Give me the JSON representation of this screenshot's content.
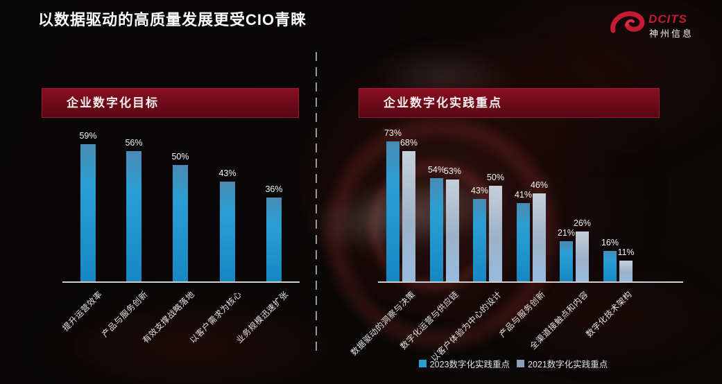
{
  "title": "以数据驱动的高质量发展更受CIO青睐",
  "logo": {
    "brand": "DCITS",
    "company": "神州信息"
  },
  "colors": {
    "accent_red": "#a01830",
    "bar_blue_top": "#4a8ab2",
    "bar_blue": "#2b9fd4",
    "bar_blue_deep": "#1787c2",
    "bar_gray_top": "#c6cfda",
    "bar_gray_mid": "#9db1c7",
    "bar_gray_bottom": "#97bbde",
    "legend_blue": "#2b9fd4",
    "legend_gray": "#8ba0b8",
    "axis": "#cfcfcf"
  },
  "chart_data": [
    {
      "type": "bar",
      "title": "企业数字化目标",
      "categories": [
        "提升运营效率",
        "产品与服务创新",
        "有效支撑战略落地",
        "以客户需求为核心",
        "业务规模迅速扩张"
      ],
      "values": [
        59,
        56,
        50,
        43,
        36
      ],
      "unit": "%",
      "ylim": [
        0,
        65
      ],
      "grid": false,
      "legend": null
    },
    {
      "type": "bar",
      "title": "企业数字化实践重点",
      "categories": [
        "数据驱动的洞察与决策",
        "数字化运营与供应链",
        "以客户体验为中心的设计",
        "产品与服务创新",
        "全渠道接触点和内容",
        "数字化技术架构"
      ],
      "series": [
        {
          "name": "2023数字化实践重点",
          "values": [
            73,
            54,
            43,
            41,
            21,
            16
          ]
        },
        {
          "name": "2021数字化实践重点",
          "values": [
            68,
            53,
            50,
            46,
            26,
            11
          ]
        }
      ],
      "unit": "%",
      "ylim": [
        0,
        80
      ],
      "grid": false,
      "legend_position": "bottom"
    }
  ]
}
